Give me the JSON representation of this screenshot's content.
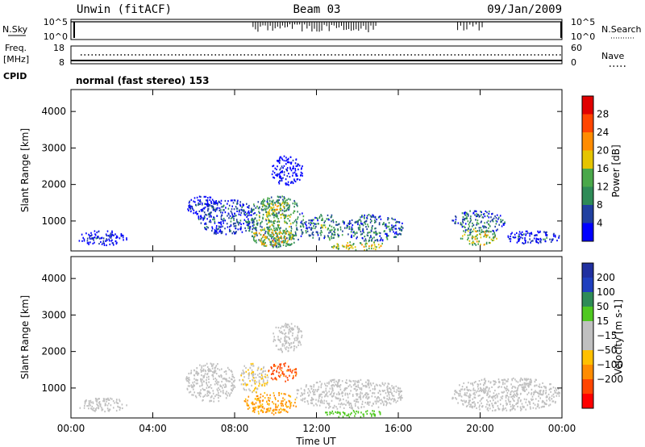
{
  "header": {
    "station": "Unwin (fitACF)",
    "beam": "Beam 03",
    "date": "09/Jan/2009"
  },
  "nsky_panel": {
    "left_label": "N.Sky",
    "right_label": "N.Search",
    "left_ticks": [
      "10^5",
      "10^0"
    ],
    "right_ticks": [
      "10^5",
      "10^0"
    ]
  },
  "freq_panel": {
    "left_label": "Freq.",
    "left_unit": "[MHz]",
    "left_ticks": [
      "18",
      "8"
    ],
    "right_label": "Nave",
    "right_ticks": [
      "60",
      "0"
    ]
  },
  "cpid_panel": {
    "label": "CPID",
    "text": "normal (fast stereo) 153"
  },
  "colors": {
    "power": [
      "#0000ff",
      "#2040a0",
      "#2e8b57",
      "#4aa84a",
      "#e5c400",
      "#ff8c00",
      "#ff4500",
      "#e00000"
    ],
    "velocity": [
      "#ff0000",
      "#ff4500",
      "#ff8c00",
      "#ffc000",
      "#c0c0c0",
      "#c0c0c0",
      "#4fc820",
      "#2e8b57",
      "#1f3fbf",
      "#2030a0"
    ]
  },
  "chart_data": [
    {
      "type": "heatmap",
      "name": "power",
      "ylabel": "Slant Range [km]",
      "xlabel": "",
      "x_ticks": [
        "00:00",
        "04:00",
        "08:00",
        "12:00",
        "16:00",
        "20:00",
        "00:00"
      ],
      "y_ticks": [
        1000,
        2000,
        3000,
        4000
      ],
      "xlim": [
        0,
        24
      ],
      "ylim": [
        180,
        4600
      ],
      "colorbar": {
        "label": "Power [dB]",
        "ticks": [
          4,
          8,
          12,
          16,
          20,
          24,
          28
        ]
      },
      "regions": [
        {
          "t": [
            0.3,
            2.7
          ],
          "r": [
            350,
            750
          ],
          "level": 6
        },
        {
          "t": [
            5.6,
            7.2
          ],
          "r": [
            1200,
            1700
          ],
          "level": 7
        },
        {
          "t": [
            6.2,
            9.0
          ],
          "r": [
            650,
            1600
          ],
          "level": 10
        },
        {
          "t": [
            8.6,
            11.4
          ],
          "r": [
            300,
            1700
          ],
          "level": 16
        },
        {
          "t": [
            9.3,
            10.7
          ],
          "r": [
            1150,
            1600
          ],
          "level": 20
        },
        {
          "t": [
            8.8,
            10.8
          ],
          "r": [
            350,
            850
          ],
          "level": 23
        },
        {
          "t": [
            11.4,
            13.4
          ],
          "r": [
            500,
            1200
          ],
          "level": 14
        },
        {
          "t": [
            13.4,
            16.2
          ],
          "r": [
            450,
            1200
          ],
          "level": 13
        },
        {
          "t": [
            12.7,
            15.5
          ],
          "r": [
            220,
            450
          ],
          "level": 21
        },
        {
          "t": [
            9.8,
            11.3
          ],
          "r": [
            2000,
            2800
          ],
          "level": 5
        },
        {
          "t": [
            18.6,
            21.2
          ],
          "r": [
            700,
            1300
          ],
          "level": 13
        },
        {
          "t": [
            19.0,
            20.8
          ],
          "r": [
            350,
            800
          ],
          "level": 21
        },
        {
          "t": [
            21.2,
            23.9
          ],
          "r": [
            400,
            750
          ],
          "level": 8
        }
      ]
    },
    {
      "type": "heatmap",
      "name": "velocity",
      "ylabel": "Slant Range [km]",
      "xlabel": "Time UT",
      "x_ticks": [
        "00:00",
        "04:00",
        "08:00",
        "12:00",
        "16:00",
        "20:00",
        "00:00"
      ],
      "y_ticks": [
        1000,
        2000,
        3000,
        4000
      ],
      "xlim": [
        0,
        24
      ],
      "ylim": [
        180,
        4600
      ],
      "colorbar": {
        "label": "Velocity [m s-1]",
        "ticks": [
          "200",
          "100",
          "50",
          "15",
          "−15",
          "−50",
          "−100",
          "−200"
        ]
      },
      "regions": [
        {
          "t": [
            0.3,
            2.7
          ],
          "r": [
            350,
            750
          ],
          "v": 0
        },
        {
          "t": [
            5.6,
            8.0
          ],
          "r": [
            650,
            1700
          ],
          "v": 0
        },
        {
          "t": [
            8.2,
            9.6
          ],
          "r": [
            900,
            1700
          ],
          "v": -10
        },
        {
          "t": [
            9.6,
            11.0
          ],
          "r": [
            1200,
            1700
          ],
          "v": -130
        },
        {
          "t": [
            8.4,
            11.0
          ],
          "r": [
            300,
            900
          ],
          "v": -55
        },
        {
          "t": [
            11.0,
            16.2
          ],
          "r": [
            450,
            1250
          ],
          "v": 0
        },
        {
          "t": [
            12.4,
            15.2
          ],
          "r": [
            220,
            420
          ],
          "v": 30
        },
        {
          "t": [
            9.8,
            11.3
          ],
          "r": [
            2000,
            2800
          ],
          "v": 0
        },
        {
          "t": [
            18.6,
            23.9
          ],
          "r": [
            400,
            1300
          ],
          "v": 0
        }
      ]
    }
  ]
}
